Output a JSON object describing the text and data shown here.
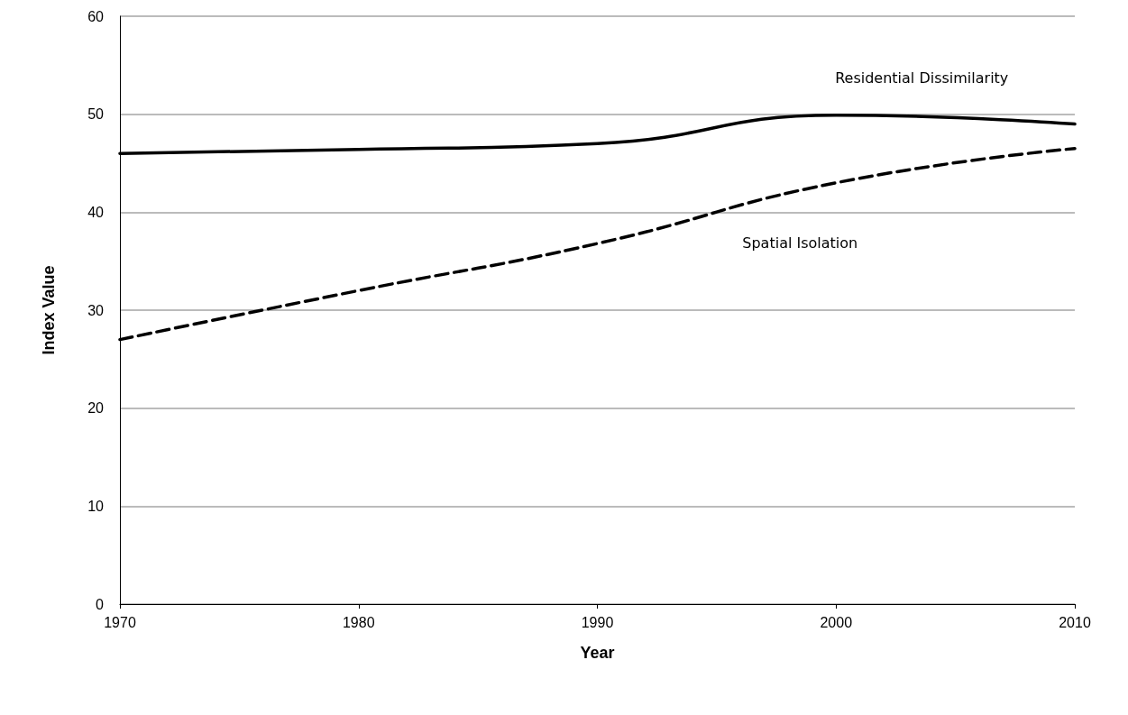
{
  "chart_data": {
    "type": "line",
    "xlabel": "Year",
    "ylabel": "Index Value",
    "x": [
      1970,
      1980,
      1990,
      2000,
      2010
    ],
    "xlim": [
      1970,
      2010
    ],
    "xticks": [
      1970,
      1980,
      1990,
      2000,
      2010
    ],
    "ylim": [
      0,
      60
    ],
    "yticks": [
      0,
      10,
      20,
      30,
      40,
      50,
      60
    ],
    "grid": "y",
    "marker": "none",
    "series": [
      {
        "name": "Residential Dissimilarity",
        "color": "#000000",
        "line_style": "solid",
        "values": [
          46,
          46.4,
          47,
          49.9,
          49
        ]
      },
      {
        "name": "Spatial Isolation",
        "color": "#000000",
        "line_style": "dashed",
        "values": [
          27,
          32,
          36.8,
          43,
          46.5
        ]
      }
    ]
  }
}
